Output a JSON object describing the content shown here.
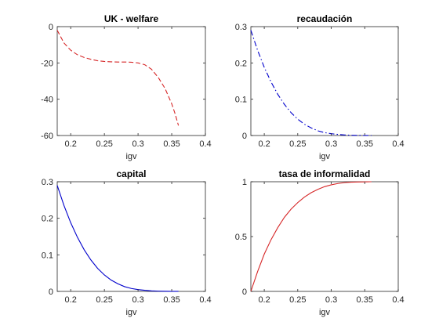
{
  "chart_data": [
    {
      "type": "line",
      "title": "UK - welfare",
      "xlabel": "igv",
      "ylabel": "",
      "xlim": [
        0.18,
        0.4
      ],
      "ylim": [
        -60,
        0
      ],
      "xticks": [
        0.2,
        0.25,
        0.3,
        0.35,
        0.4
      ],
      "xtick_labels": [
        "0.2",
        "0.25",
        "0.3",
        "0.35",
        "0.4"
      ],
      "yticks": [
        -60,
        -40,
        -20,
        0
      ],
      "ytick_labels": [
        "-60",
        "-40",
        "-20",
        "0"
      ],
      "grid": false,
      "series": [
        {
          "color": "#d62728",
          "line_style": "dashed",
          "x": [
            0.18,
            0.19,
            0.2,
            0.21,
            0.22,
            0.23,
            0.24,
            0.25,
            0.26,
            0.27,
            0.28,
            0.29,
            0.3,
            0.31,
            0.32,
            0.33,
            0.34,
            0.35,
            0.355,
            0.36
          ],
          "values": [
            -2,
            -9,
            -13,
            -15.5,
            -17,
            -18,
            -18.8,
            -19.2,
            -19.4,
            -19.5,
            -19.5,
            -19.6,
            -20,
            -21,
            -23.5,
            -28,
            -34,
            -42.5,
            -48,
            -54.5
          ]
        }
      ]
    },
    {
      "type": "line",
      "title": "recaudación",
      "xlabel": "igv",
      "ylabel": "",
      "xlim": [
        0.18,
        0.4
      ],
      "ylim": [
        0,
        0.3
      ],
      "xticks": [
        0.2,
        0.25,
        0.3,
        0.35,
        0.4
      ],
      "xtick_labels": [
        "0.2",
        "0.25",
        "0.3",
        "0.35",
        "0.4"
      ],
      "yticks": [
        0,
        0.1,
        0.2,
        0.3
      ],
      "ytick_labels": [
        "0",
        "0.1",
        "0.2",
        "0.3"
      ],
      "grid": false,
      "series": [
        {
          "color": "#0000cc",
          "line_style": "dashdot",
          "x": [
            0.18,
            0.19,
            0.2,
            0.21,
            0.22,
            0.23,
            0.24,
            0.25,
            0.26,
            0.27,
            0.28,
            0.29,
            0.3,
            0.31,
            0.32,
            0.33,
            0.34,
            0.35,
            0.36
          ],
          "values": [
            0.29,
            0.235,
            0.188,
            0.148,
            0.114,
            0.086,
            0.063,
            0.045,
            0.031,
            0.021,
            0.013,
            0.008,
            0.005,
            0.003,
            0.0015,
            0.0008,
            0.0004,
            0.0002,
            0.0001
          ]
        }
      ]
    },
    {
      "type": "line",
      "title": "capital",
      "xlabel": "igv",
      "ylabel": "",
      "xlim": [
        0.18,
        0.4
      ],
      "ylim": [
        0,
        0.3
      ],
      "xticks": [
        0.2,
        0.25,
        0.3,
        0.35,
        0.4
      ],
      "xtick_labels": [
        "0.2",
        "0.25",
        "0.3",
        "0.35",
        "0.4"
      ],
      "yticks": [
        0,
        0.1,
        0.2,
        0.3
      ],
      "ytick_labels": [
        "0",
        "0.1",
        "0.2",
        "0.3"
      ],
      "grid": false,
      "series": [
        {
          "color": "#0000cc",
          "line_style": "solid",
          "x": [
            0.18,
            0.19,
            0.2,
            0.21,
            0.22,
            0.23,
            0.24,
            0.25,
            0.26,
            0.27,
            0.28,
            0.29,
            0.3,
            0.31,
            0.32,
            0.33,
            0.34,
            0.35,
            0.36
          ],
          "values": [
            0.29,
            0.235,
            0.188,
            0.148,
            0.114,
            0.086,
            0.063,
            0.045,
            0.031,
            0.021,
            0.013,
            0.008,
            0.005,
            0.003,
            0.0015,
            0.0008,
            0.0004,
            0.0002,
            0.0001
          ]
        }
      ]
    },
    {
      "type": "line",
      "title": "tasa de informalidad",
      "xlabel": "igv",
      "ylabel": "",
      "xlim": [
        0.18,
        0.4
      ],
      "ylim": [
        0,
        1
      ],
      "xticks": [
        0.2,
        0.25,
        0.3,
        0.35,
        0.4
      ],
      "xtick_labels": [
        "0.2",
        "0.25",
        "0.3",
        "0.35",
        "0.4"
      ],
      "yticks": [
        0,
        0.5,
        1
      ],
      "ytick_labels": [
        "0",
        "0.5",
        "1"
      ],
      "grid": false,
      "series": [
        {
          "color": "#d62728",
          "line_style": "solid",
          "x": [
            0.18,
            0.19,
            0.2,
            0.21,
            0.22,
            0.23,
            0.24,
            0.25,
            0.26,
            0.27,
            0.28,
            0.29,
            0.3,
            0.31,
            0.32,
            0.33,
            0.34,
            0.35,
            0.36
          ],
          "values": [
            0,
            0.18,
            0.34,
            0.47,
            0.58,
            0.675,
            0.75,
            0.81,
            0.86,
            0.9,
            0.93,
            0.955,
            0.972,
            0.984,
            0.992,
            0.996,
            0.998,
            0.999,
            1.0
          ]
        }
      ]
    }
  ]
}
